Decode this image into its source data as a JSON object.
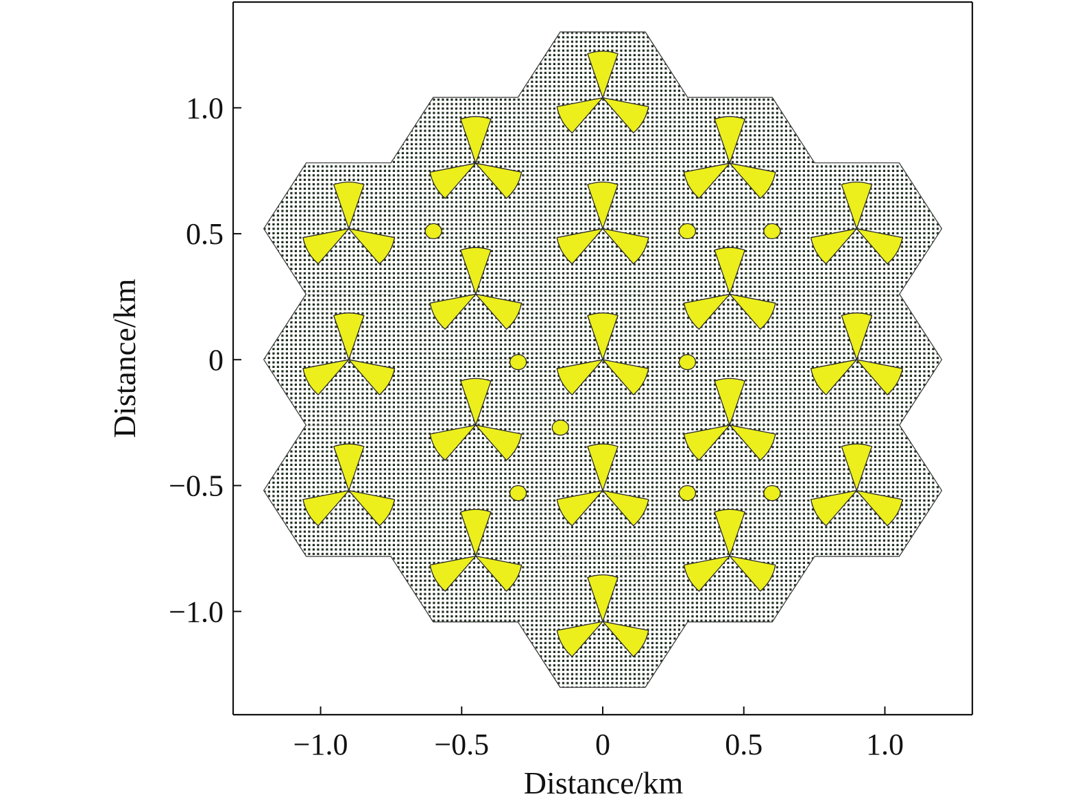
{
  "chart_data": {
    "type": "scatter",
    "title": "",
    "xlabel": "Distance/km",
    "ylabel": "Distance/km",
    "xlim": [
      -1.31,
      1.31
    ],
    "ylim": [
      -1.41,
      1.42
    ],
    "x_ticks": [
      {
        "value": -1.0,
        "label": "−1.0"
      },
      {
        "value": -0.5,
        "label": "−0.5"
      },
      {
        "value": 0,
        "label": "0"
      },
      {
        "value": 0.5,
        "label": "0.5"
      },
      {
        "value": 1.0,
        "label": "1.0"
      }
    ],
    "y_ticks": [
      {
        "value": 1.0,
        "label": "1.0"
      },
      {
        "value": 0.5,
        "label": "0.5"
      },
      {
        "value": 0,
        "label": "0"
      },
      {
        "value": -0.5,
        "label": "−0.5"
      },
      {
        "value": -1.0,
        "label": "−1.0"
      }
    ],
    "grid": false,
    "legend": "none",
    "colors": {
      "fill": "#ecef1c",
      "marker_stroke": "#2a2a2a",
      "area_dot": "#1f2e1f",
      "outline": "#333333"
    },
    "region": {
      "hex_circumradius_km": 0.3,
      "hex_centers": [
        [
          0,
          1.04
        ],
        [
          -0.45,
          0.78
        ],
        [
          0.45,
          0.78
        ],
        [
          -0.9,
          0.52
        ],
        [
          0,
          0.52
        ],
        [
          0.9,
          0.52
        ],
        [
          -0.45,
          0.26
        ],
        [
          0.45,
          0.26
        ],
        [
          -0.9,
          0
        ],
        [
          0,
          0
        ],
        [
          0.9,
          0
        ],
        [
          -0.45,
          -0.26
        ],
        [
          0.45,
          -0.26
        ],
        [
          -0.9,
          -0.52
        ],
        [
          0,
          -0.52
        ],
        [
          0.9,
          -0.52
        ],
        [
          -0.45,
          -0.78
        ],
        [
          0.45,
          -0.78
        ],
        [
          0,
          -1.04
        ]
      ]
    },
    "sectored_sites": [
      [
        0,
        1.04
      ],
      [
        -0.45,
        0.78
      ],
      [
        0.45,
        0.78
      ],
      [
        -0.9,
        0.52
      ],
      [
        0,
        0.52
      ],
      [
        0.9,
        0.52
      ],
      [
        -0.45,
        0.26
      ],
      [
        0.45,
        0.26
      ],
      [
        -0.9,
        0
      ],
      [
        0,
        0
      ],
      [
        0.9,
        0
      ],
      [
        -0.45,
        -0.26
      ],
      [
        0.45,
        -0.26
      ],
      [
        -0.9,
        -0.52
      ],
      [
        0,
        -0.52
      ],
      [
        0.9,
        -0.52
      ],
      [
        -0.45,
        -0.78
      ],
      [
        0.45,
        -0.78
      ],
      [
        0,
        -1.04
      ]
    ],
    "omni_sites": [
      [
        -0.6,
        0.51
      ],
      [
        0.3,
        0.51
      ],
      [
        0.6,
        0.51
      ],
      [
        -0.3,
        -0.01
      ],
      [
        0.3,
        -0.01
      ],
      [
        -0.15,
        -0.27
      ],
      [
        -0.3,
        -0.53
      ],
      [
        0.3,
        -0.53
      ],
      [
        0.6,
        -0.53
      ]
    ]
  }
}
